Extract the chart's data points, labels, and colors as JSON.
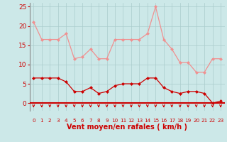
{
  "hours": [
    0,
    1,
    2,
    3,
    4,
    5,
    6,
    7,
    8,
    9,
    10,
    11,
    12,
    13,
    14,
    15,
    16,
    17,
    18,
    19,
    20,
    21,
    22,
    23
  ],
  "rafales": [
    21,
    16.5,
    16.5,
    16.5,
    18,
    11.5,
    12,
    14,
    11.5,
    11.5,
    16.5,
    16.5,
    16.5,
    16.5,
    18,
    25,
    16.5,
    14,
    10.5,
    10.5,
    8,
    8,
    11.5,
    11.5
  ],
  "vent_moyen": [
    6.5,
    6.5,
    6.5,
    6.5,
    5.5,
    3,
    3,
    4,
    2.5,
    3,
    4.5,
    5,
    5,
    5,
    6.5,
    6.5,
    4,
    3,
    2.5,
    3,
    3,
    2.5,
    0,
    0.5
  ],
  "bg_color": "#cce8e8",
  "line_color_rafales": "#f09090",
  "line_color_moyen": "#cc0000",
  "arrow_color": "#cc0000",
  "xlabel": "Vent moyen/en rafales ( km/h )",
  "ylim": [
    -2,
    26
  ],
  "yticks": [
    0,
    5,
    10,
    15,
    20,
    25
  ],
  "grid_color": "#aacccc",
  "tick_color": "#cc0000",
  "label_color": "#cc0000",
  "spine_color": "#888888"
}
